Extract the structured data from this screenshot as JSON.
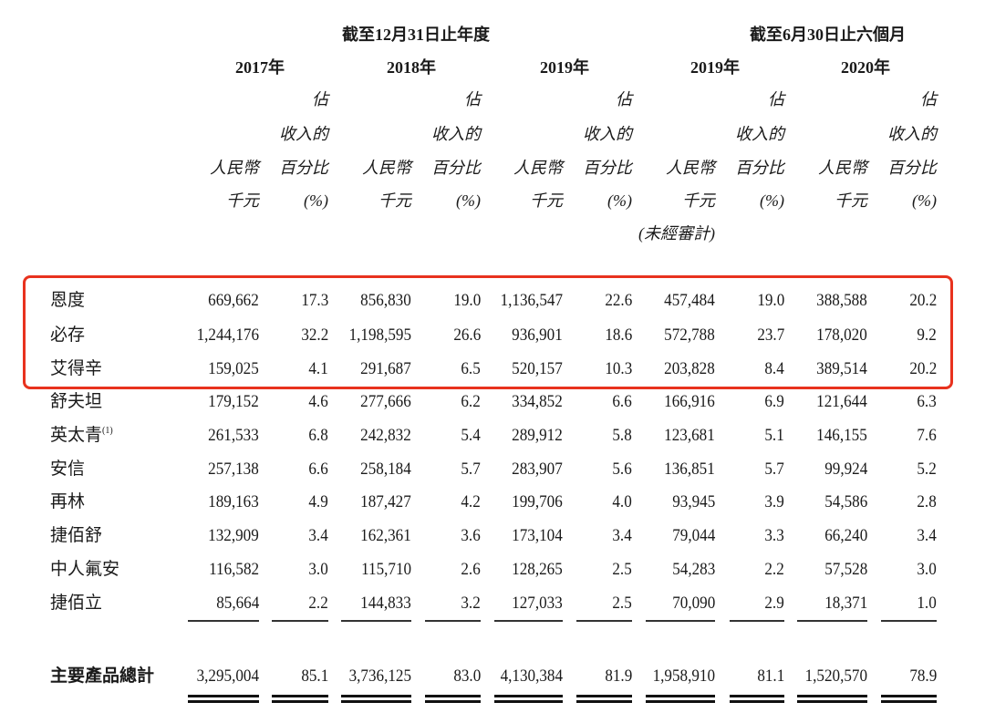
{
  "header": {
    "group_annual": "截至12月31日止年度",
    "group_interim": "截至6月30日止六個月",
    "years": [
      "2017年",
      "2018年",
      "2019年",
      "2019年",
      "2020年"
    ],
    "amount_heading": [
      "人民幣",
      "千元"
    ],
    "pct_heading": [
      "佔",
      "收入的",
      "百分比",
      "(%)"
    ],
    "unaudited": "(未經審計)"
  },
  "rows": [
    {
      "name": "恩度",
      "values": [
        "669,662",
        "17.3",
        "856,830",
        "19.0",
        "1,136,547",
        "22.6",
        "457,484",
        "19.0",
        "388,588",
        "20.2"
      ]
    },
    {
      "name": "必存",
      "values": [
        "1,244,176",
        "32.2",
        "1,198,595",
        "26.6",
        "936,901",
        "18.6",
        "572,788",
        "23.7",
        "178,020",
        "9.2"
      ]
    },
    {
      "name": "艾得辛",
      "values": [
        "159,025",
        "4.1",
        "291,687",
        "6.5",
        "520,157",
        "10.3",
        "203,828",
        "8.4",
        "389,514",
        "20.2"
      ]
    },
    {
      "name": "舒夫坦",
      "values": [
        "179,152",
        "4.6",
        "277,666",
        "6.2",
        "334,852",
        "6.6",
        "166,916",
        "6.9",
        "121,644",
        "6.3"
      ]
    },
    {
      "name": "英太青",
      "note": "(1)",
      "values": [
        "261,533",
        "6.8",
        "242,832",
        "5.4",
        "289,912",
        "5.8",
        "123,681",
        "5.1",
        "146,155",
        "7.6"
      ]
    },
    {
      "name": "安信",
      "values": [
        "257,138",
        "6.6",
        "258,184",
        "5.7",
        "283,907",
        "5.6",
        "136,851",
        "5.7",
        "99,924",
        "5.2"
      ]
    },
    {
      "name": "再林",
      "values": [
        "189,163",
        "4.9",
        "187,427",
        "4.2",
        "199,706",
        "4.0",
        "93,945",
        "3.9",
        "54,586",
        "2.8"
      ]
    },
    {
      "name": "捷佰舒",
      "values": [
        "132,909",
        "3.4",
        "162,361",
        "3.6",
        "173,104",
        "3.4",
        "79,044",
        "3.3",
        "66,240",
        "3.4"
      ]
    },
    {
      "name": "中人氟安",
      "values": [
        "116,582",
        "3.0",
        "115,710",
        "2.6",
        "128,265",
        "2.5",
        "54,283",
        "2.2",
        "57,528",
        "3.0"
      ]
    },
    {
      "name": "捷佰立",
      "values": [
        "85,664",
        "2.2",
        "144,833",
        "3.2",
        "127,033",
        "2.5",
        "70,090",
        "2.9",
        "18,371",
        "1.0"
      ]
    }
  ],
  "total": {
    "name": "主要產品總計",
    "values": [
      "3,295,004",
      "85.1",
      "3,736,125",
      "83.0",
      "4,130,384",
      "81.9",
      "1,958,910",
      "81.1",
      "1,520,570",
      "78.9"
    ]
  },
  "highlight_color": "#e8321e"
}
